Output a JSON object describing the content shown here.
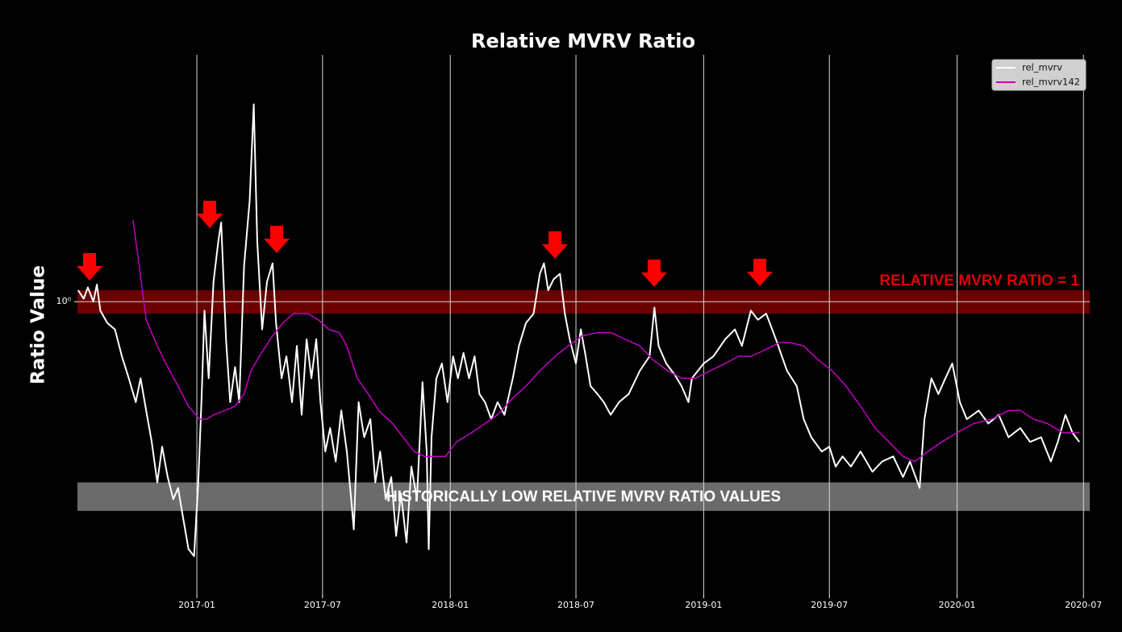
{
  "chart_data": {
    "type": "line",
    "title": "Relative MVRV Ratio",
    "y_label": "Ratio Value",
    "yscale": "log",
    "ylim": [
      0.368,
      2.32
    ],
    "yticks": [
      {
        "value": 1,
        "label": "10⁰"
      }
    ],
    "xlim": [
      "2016-07-13",
      "2020-07-10"
    ],
    "xticks": [
      "2017-01",
      "2017-07",
      "2018-01",
      "2018-07",
      "2019-01",
      "2019-07",
      "2020-01",
      "2020-07"
    ],
    "grid": true,
    "legend": "upper right",
    "bands": [
      {
        "label": "RELATIVE MVRV RATIO = 1",
        "range": [
          0.96,
          1.04
        ],
        "color": "#6b0000",
        "label_color": "#e00000"
      },
      {
        "label": "HISTORICALLY LOW RELATIVE MVRV RATIO VALUES",
        "range": [
          0.49,
          0.54
        ],
        "color": "#6b6b6b",
        "label_color": "#ffffff"
      }
    ],
    "series": [
      {
        "name": "rel_mvrv",
        "color": "#ffffff",
        "x": [
          "2016-07-14",
          "2016-07-22",
          "2016-07-28",
          "2016-08-05",
          "2016-08-10",
          "2016-08-15",
          "2016-08-25",
          "2016-09-05",
          "2016-09-15",
          "2016-09-25",
          "2016-10-05",
          "2016-10-12",
          "2016-10-20",
          "2016-10-28",
          "2016-11-05",
          "2016-11-12",
          "2016-11-20",
          "2016-11-28",
          "2016-12-05",
          "2016-12-12",
          "2016-12-20",
          "2016-12-28",
          "2017-01-03",
          "2017-01-08",
          "2017-01-12",
          "2017-01-18",
          "2017-01-25",
          "2017-02-01",
          "2017-02-05",
          "2017-02-12",
          "2017-02-18",
          "2017-02-25",
          "2017-03-03",
          "2017-03-10",
          "2017-03-18",
          "2017-03-24",
          "2017-03-29",
          "2017-04-05",
          "2017-04-12",
          "2017-04-20",
          "2017-04-25",
          "2017-05-03",
          "2017-05-10",
          "2017-05-18",
          "2017-05-25",
          "2017-06-01",
          "2017-06-08",
          "2017-06-15",
          "2017-06-22",
          "2017-06-28",
          "2017-07-05",
          "2017-07-12",
          "2017-07-20",
          "2017-07-28",
          "2017-08-05",
          "2017-08-12",
          "2017-08-15",
          "2017-08-22",
          "2017-08-30",
          "2017-09-08",
          "2017-09-15",
          "2017-09-22",
          "2017-09-30",
          "2017-10-08",
          "2017-10-15",
          "2017-10-22",
          "2017-10-30",
          "2017-11-06",
          "2017-11-14",
          "2017-11-22",
          "2017-11-28",
          "2017-12-01",
          "2017-12-05",
          "2017-12-12",
          "2017-12-20",
          "2017-12-28",
          "2018-01-05",
          "2018-01-12",
          "2018-01-20",
          "2018-01-28",
          "2018-02-05",
          "2018-02-12",
          "2018-02-20",
          "2018-03-01",
          "2018-03-10",
          "2018-03-20",
          "2018-04-01",
          "2018-04-10",
          "2018-04-20",
          "2018-05-01",
          "2018-05-10",
          "2018-05-16",
          "2018-05-22",
          "2018-05-30",
          "2018-06-08",
          "2018-06-15",
          "2018-06-22",
          "2018-07-01",
          "2018-07-08",
          "2018-07-15",
          "2018-07-22",
          "2018-08-01",
          "2018-08-10",
          "2018-08-20",
          "2018-09-01",
          "2018-09-15",
          "2018-10-01",
          "2018-10-15",
          "2018-10-22",
          "2018-10-28",
          "2018-11-08",
          "2018-11-20",
          "2018-11-30",
          "2018-12-10",
          "2018-12-15",
          "2019-01-01",
          "2019-01-15",
          "2019-02-01",
          "2019-02-15",
          "2019-02-25",
          "2019-03-10",
          "2019-03-20",
          "2019-04-01",
          "2019-04-15",
          "2019-05-01",
          "2019-05-15",
          "2019-05-25",
          "2019-06-05",
          "2019-06-20",
          "2019-07-01",
          "2019-07-10",
          "2019-07-20",
          "2019-08-01",
          "2019-08-15",
          "2019-09-01",
          "2019-09-15",
          "2019-10-01",
          "2019-10-15",
          "2019-10-25",
          "2019-11-08",
          "2019-11-15",
          "2019-11-25",
          "2019-12-05",
          "2019-12-15",
          "2019-12-25",
          "2020-01-05",
          "2020-01-15",
          "2020-02-01",
          "2020-02-15",
          "2020-03-01",
          "2020-03-15",
          "2020-04-01",
          "2020-04-15",
          "2020-05-01",
          "2020-05-15",
          "2020-05-25",
          "2020-06-05",
          "2020-06-15",
          "2020-06-25"
        ],
        "values": [
          1.04,
          1.01,
          1.05,
          1.0,
          1.06,
          0.97,
          0.93,
          0.91,
          0.83,
          0.77,
          0.71,
          0.77,
          0.69,
          0.62,
          0.54,
          0.61,
          0.55,
          0.51,
          0.53,
          0.48,
          0.43,
          0.42,
          0.54,
          0.73,
          0.97,
          0.77,
          1.07,
          1.23,
          1.31,
          0.88,
          0.71,
          0.8,
          0.71,
          1.13,
          1.41,
          1.96,
          1.23,
          0.91,
          1.07,
          1.14,
          0.93,
          0.77,
          0.83,
          0.71,
          0.86,
          0.68,
          0.88,
          0.77,
          0.88,
          0.71,
          0.6,
          0.65,
          0.58,
          0.69,
          0.6,
          0.5,
          0.46,
          0.71,
          0.63,
          0.67,
          0.54,
          0.6,
          0.51,
          0.55,
          0.45,
          0.52,
          0.44,
          0.57,
          0.51,
          0.76,
          0.6,
          0.43,
          0.63,
          0.77,
          0.81,
          0.71,
          0.83,
          0.77,
          0.84,
          0.77,
          0.83,
          0.73,
          0.71,
          0.67,
          0.71,
          0.68,
          0.77,
          0.86,
          0.93,
          0.96,
          1.1,
          1.14,
          1.04,
          1.08,
          1.1,
          0.96,
          0.88,
          0.81,
          0.91,
          0.83,
          0.75,
          0.73,
          0.71,
          0.68,
          0.71,
          0.73,
          0.79,
          0.83,
          0.98,
          0.86,
          0.81,
          0.78,
          0.75,
          0.71,
          0.77,
          0.81,
          0.83,
          0.88,
          0.91,
          0.86,
          0.97,
          0.94,
          0.96,
          0.88,
          0.79,
          0.75,
          0.67,
          0.63,
          0.6,
          0.61,
          0.57,
          0.59,
          0.57,
          0.6,
          0.56,
          0.58,
          0.59,
          0.55,
          0.58,
          0.53,
          0.67,
          0.77,
          0.73,
          0.77,
          0.81,
          0.71,
          0.67,
          0.69,
          0.66,
          0.68,
          0.63,
          0.65,
          0.62,
          0.63,
          0.58,
          0.62,
          0.68,
          0.64,
          0.62
        ]
      },
      {
        "name": "rel_mvrv142",
        "color": "#c000c0",
        "x": [
          "2016-10-01",
          "2016-10-10",
          "2016-10-20",
          "2016-11-05",
          "2016-11-20",
          "2016-12-05",
          "2016-12-20",
          "2017-01-05",
          "2017-01-15",
          "2017-01-25",
          "2017-02-10",
          "2017-02-25",
          "2017-03-10",
          "2017-03-20",
          "2017-04-01",
          "2017-04-20",
          "2017-05-05",
          "2017-05-20",
          "2017-06-10",
          "2017-06-25",
          "2017-07-10",
          "2017-07-25",
          "2017-08-05",
          "2017-08-20",
          "2017-09-05",
          "2017-09-20",
          "2017-10-10",
          "2017-10-25",
          "2017-11-10",
          "2017-11-25",
          "2017-12-10",
          "2017-12-25",
          "2018-01-10",
          "2018-02-01",
          "2018-02-20",
          "2018-03-10",
          "2018-04-01",
          "2018-04-20",
          "2018-05-10",
          "2018-06-01",
          "2018-06-20",
          "2018-07-10",
          "2018-08-01",
          "2018-08-20",
          "2018-09-10",
          "2018-10-01",
          "2018-10-20",
          "2018-11-10",
          "2018-12-01",
          "2018-12-20",
          "2019-01-10",
          "2019-02-01",
          "2019-02-20",
          "2019-03-10",
          "2019-04-01",
          "2019-04-20",
          "2019-05-05",
          "2019-05-25",
          "2019-06-15",
          "2019-07-05",
          "2019-07-25",
          "2019-08-15",
          "2019-09-05",
          "2019-09-25",
          "2019-10-15",
          "2019-11-01",
          "2019-11-20",
          "2019-12-10",
          "2020-01-01",
          "2020-01-25",
          "2020-02-20",
          "2020-03-15",
          "2020-04-01",
          "2020-04-20",
          "2020-05-10",
          "2020-06-01",
          "2020-06-25"
        ],
        "values": [
          1.32,
          1.13,
          0.94,
          0.86,
          0.8,
          0.75,
          0.7,
          0.67,
          0.67,
          0.68,
          0.69,
          0.7,
          0.73,
          0.79,
          0.83,
          0.89,
          0.93,
          0.96,
          0.96,
          0.94,
          0.91,
          0.9,
          0.86,
          0.77,
          0.73,
          0.69,
          0.66,
          0.63,
          0.6,
          0.59,
          0.59,
          0.59,
          0.62,
          0.64,
          0.66,
          0.68,
          0.72,
          0.75,
          0.79,
          0.83,
          0.86,
          0.89,
          0.9,
          0.9,
          0.88,
          0.86,
          0.82,
          0.79,
          0.77,
          0.77,
          0.79,
          0.81,
          0.83,
          0.83,
          0.85,
          0.87,
          0.87,
          0.86,
          0.82,
          0.79,
          0.75,
          0.7,
          0.65,
          0.62,
          0.59,
          0.58,
          0.6,
          0.62,
          0.64,
          0.66,
          0.67,
          0.69,
          0.69,
          0.67,
          0.66,
          0.64,
          0.64
        ]
      }
    ]
  }
}
